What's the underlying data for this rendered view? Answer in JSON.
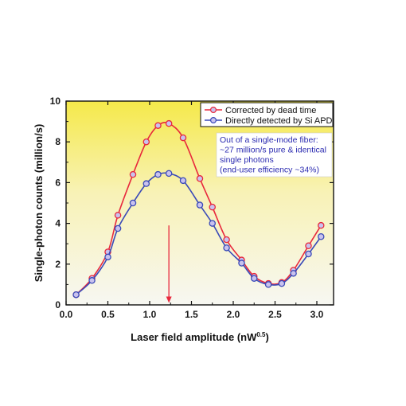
{
  "chart_data": {
    "type": "line",
    "xlabel": "Laser field amplitude (nW",
    "xlabel_sup": "0.5",
    "xlabel_end": ")",
    "ylabel": "Single-photon counts (million/s)",
    "xlim": [
      0.0,
      3.2
    ],
    "ylim": [
      0,
      10
    ],
    "xticks": [
      "0.0",
      "0.5",
      "1.0",
      "1.5",
      "2.0",
      "2.5",
      "3.0"
    ],
    "xtick_values": [
      0.0,
      0.5,
      1.0,
      1.5,
      2.0,
      2.5,
      3.0
    ],
    "yticks": [
      "0",
      "2",
      "4",
      "6",
      "8",
      "10"
    ],
    "ytick_values": [
      0,
      2,
      4,
      6,
      8,
      10
    ],
    "grid": false,
    "legend_position": "top-right",
    "series": [
      {
        "name": "Corrected by dead time",
        "color": "#e8283c",
        "x": [
          0.12,
          0.31,
          0.5,
          0.62,
          0.8,
          0.96,
          1.1,
          1.23,
          1.4,
          1.6,
          1.75,
          1.92,
          2.1,
          2.25,
          2.42,
          2.58,
          2.72,
          2.9,
          3.05
        ],
        "y": [
          0.5,
          1.3,
          2.6,
          4.4,
          6.4,
          8.0,
          8.8,
          8.9,
          8.2,
          6.2,
          4.8,
          3.2,
          2.2,
          1.4,
          1.05,
          1.1,
          1.7,
          2.9,
          3.9
        ]
      },
      {
        "name": "Directly detected by Si APD",
        "color": "#3a4ab8",
        "x": [
          0.12,
          0.31,
          0.5,
          0.62,
          0.8,
          0.96,
          1.1,
          1.23,
          1.4,
          1.6,
          1.75,
          1.92,
          2.1,
          2.25,
          2.42,
          2.58,
          2.72,
          2.9,
          3.05
        ],
        "y": [
          0.5,
          1.2,
          2.35,
          3.75,
          5.0,
          5.95,
          6.4,
          6.45,
          6.1,
          4.9,
          4.0,
          2.8,
          2.05,
          1.3,
          1.0,
          1.05,
          1.55,
          2.5,
          3.35
        ]
      }
    ],
    "annotation": {
      "lines": [
        "Out of a single-mode fiber:",
        "~27 million/s pure & identical",
        "single photons",
        "(end-user efficiency ~34%)"
      ],
      "color": "#2a2ab0"
    },
    "arrow": {
      "x": 1.23,
      "y_from": 3.9,
      "y_to": 0.1,
      "color": "#e8283c"
    }
  }
}
